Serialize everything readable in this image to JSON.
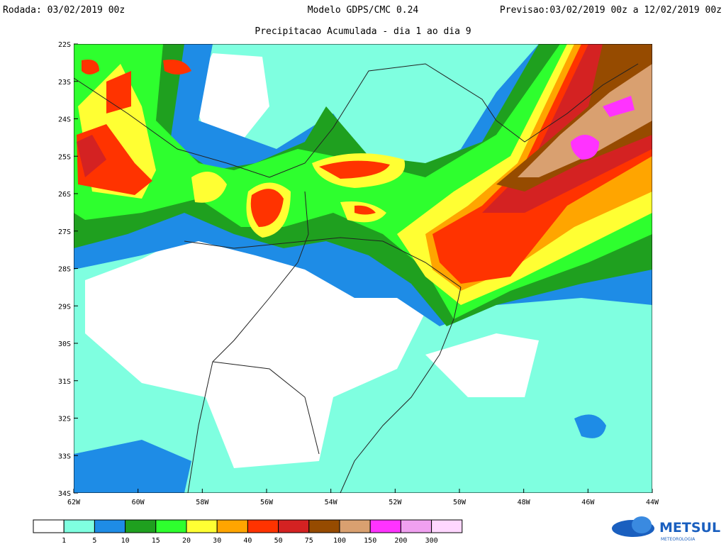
{
  "header": {
    "run": "Rodada: 03/02/2019 00z",
    "model": "Modelo GDPS/CMC 0.24",
    "forecast": "Previsao:03/02/2019 00z a 12/02/2019 00z",
    "subtitle": "Precipitacao Acumulada - dia 1 ao dia 9"
  },
  "map": {
    "lat_labels": [
      "22S",
      "23S",
      "24S",
      "25S",
      "26S",
      "27S",
      "28S",
      "29S",
      "30S",
      "31S",
      "32S",
      "33S",
      "34S"
    ],
    "lon_labels": [
      "62W",
      "60W",
      "58W",
      "56W",
      "54W",
      "52W",
      "50W",
      "48W",
      "46W",
      "44W"
    ]
  },
  "colorbar": {
    "colors": [
      "#ffffff",
      "#7fffe0",
      "#1e8ce6",
      "#1fa01f",
      "#2eff2e",
      "#ffff33",
      "#ffa500",
      "#ff3300",
      "#d42222",
      "#964b00",
      "#d9a070",
      "#ff33ff",
      "#f0a0f0",
      "#ffd7ff"
    ],
    "labels": [
      "1",
      "5",
      "10",
      "15",
      "20",
      "30",
      "40",
      "50",
      "75",
      "100",
      "150",
      "200",
      "300"
    ]
  },
  "logo": {
    "name": "METSUL",
    "tagline": "METEOROLOGIA"
  }
}
